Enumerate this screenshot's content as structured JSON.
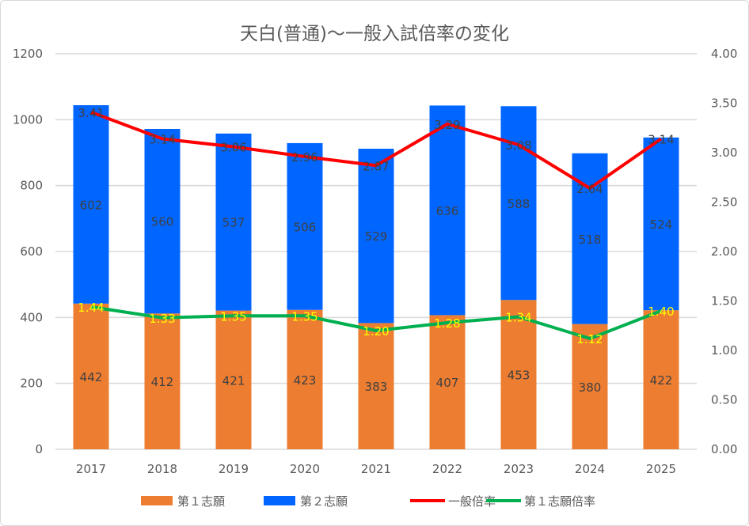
{
  "chart_data": {
    "type": "bar",
    "title": "天白(普通)～一般入試倍率の変化",
    "categories": [
      "2017",
      "2018",
      "2019",
      "2020",
      "2021",
      "2022",
      "2023",
      "2024",
      "2025"
    ],
    "y_left": {
      "lim": [
        0,
        1200
      ],
      "ticks": [
        "0",
        "200",
        "400",
        "600",
        "800",
        "1000",
        "1200"
      ],
      "tick_values": [
        0,
        200,
        400,
        600,
        800,
        1000,
        1200
      ]
    },
    "y_right": {
      "lim": [
        0,
        4
      ],
      "ticks": [
        "0.00",
        "0.50",
        "1.00",
        "1.50",
        "2.00",
        "2.50",
        "3.00",
        "3.50",
        "4.00"
      ],
      "tick_values": [
        0,
        0.5,
        1,
        1.5,
        2,
        2.5,
        3,
        3.5,
        4
      ]
    },
    "grid": true,
    "legend_position": "bottom",
    "series": [
      {
        "name": "第１志願",
        "kind": "stacked-bar",
        "axis": "left",
        "color": "#ed7d31",
        "values": [
          442,
          412,
          421,
          423,
          383,
          407,
          453,
          380,
          422
        ]
      },
      {
        "name": "第２志願",
        "kind": "stacked-bar",
        "axis": "left",
        "color": "#0066ff",
        "values": [
          602,
          560,
          537,
          506,
          529,
          636,
          588,
          518,
          524
        ]
      },
      {
        "name": "一般倍率",
        "kind": "line",
        "axis": "right",
        "color": "#ff0000",
        "label_color": "#404040",
        "values": [
          3.41,
          3.14,
          3.06,
          2.96,
          2.87,
          3.29,
          3.08,
          2.64,
          3.14
        ]
      },
      {
        "name": "第１志願倍率",
        "kind": "line",
        "axis": "right",
        "color": "#00b050",
        "label_color": "#ffff00",
        "values": [
          1.44,
          1.33,
          1.35,
          1.35,
          1.2,
          1.28,
          1.34,
          1.12,
          1.4
        ]
      }
    ]
  }
}
